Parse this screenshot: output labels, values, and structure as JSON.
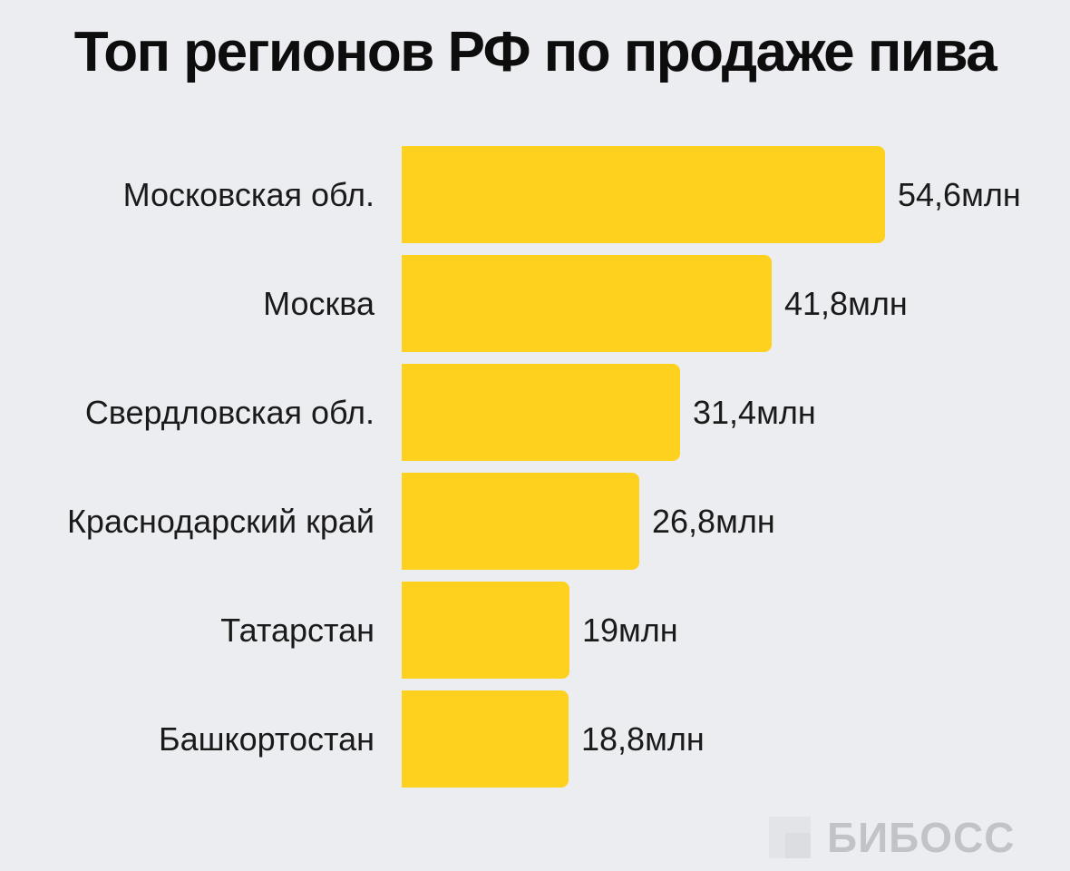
{
  "title": "Топ регионов РФ по продаже пива",
  "chart_data": {
    "type": "bar",
    "orientation": "horizontal",
    "title": "Топ регионов РФ по продаже пива",
    "categories": [
      "Московская обл.",
      "Москва",
      "Свердловская обл.",
      "Краснодарский край",
      "Татарстан",
      "Башкортостан"
    ],
    "values": [
      54.6,
      41.8,
      31.4,
      26.8,
      19,
      18.8
    ],
    "value_labels": [
      "54,6млн",
      "41,8млн",
      "31,4млн",
      "26,8млн",
      "19млн",
      "18,8млн"
    ],
    "unit": "млн",
    "xlabel": "",
    "ylabel": "",
    "grid": false,
    "legend": null,
    "bar_color": "#fdd11e"
  },
  "rows": [
    {
      "label": "Московская обл.",
      "value": "54,6млн"
    },
    {
      "label": "Москва",
      "value": "41,8млн"
    },
    {
      "label": "Свердловская обл.",
      "value": "31,4млн"
    },
    {
      "label": "Краснодарский край",
      "value": "26,8млн"
    },
    {
      "label": "Татарстан",
      "value": "19млн"
    },
    {
      "label": "Башкортостан",
      "value": "18,8млн"
    }
  ],
  "logo": {
    "text": "БИБОСС"
  },
  "colors": {
    "background": "#ecedf1",
    "bar": "#fdd11e",
    "text": "#1a1a1a",
    "logo": "#c2c3c6"
  }
}
